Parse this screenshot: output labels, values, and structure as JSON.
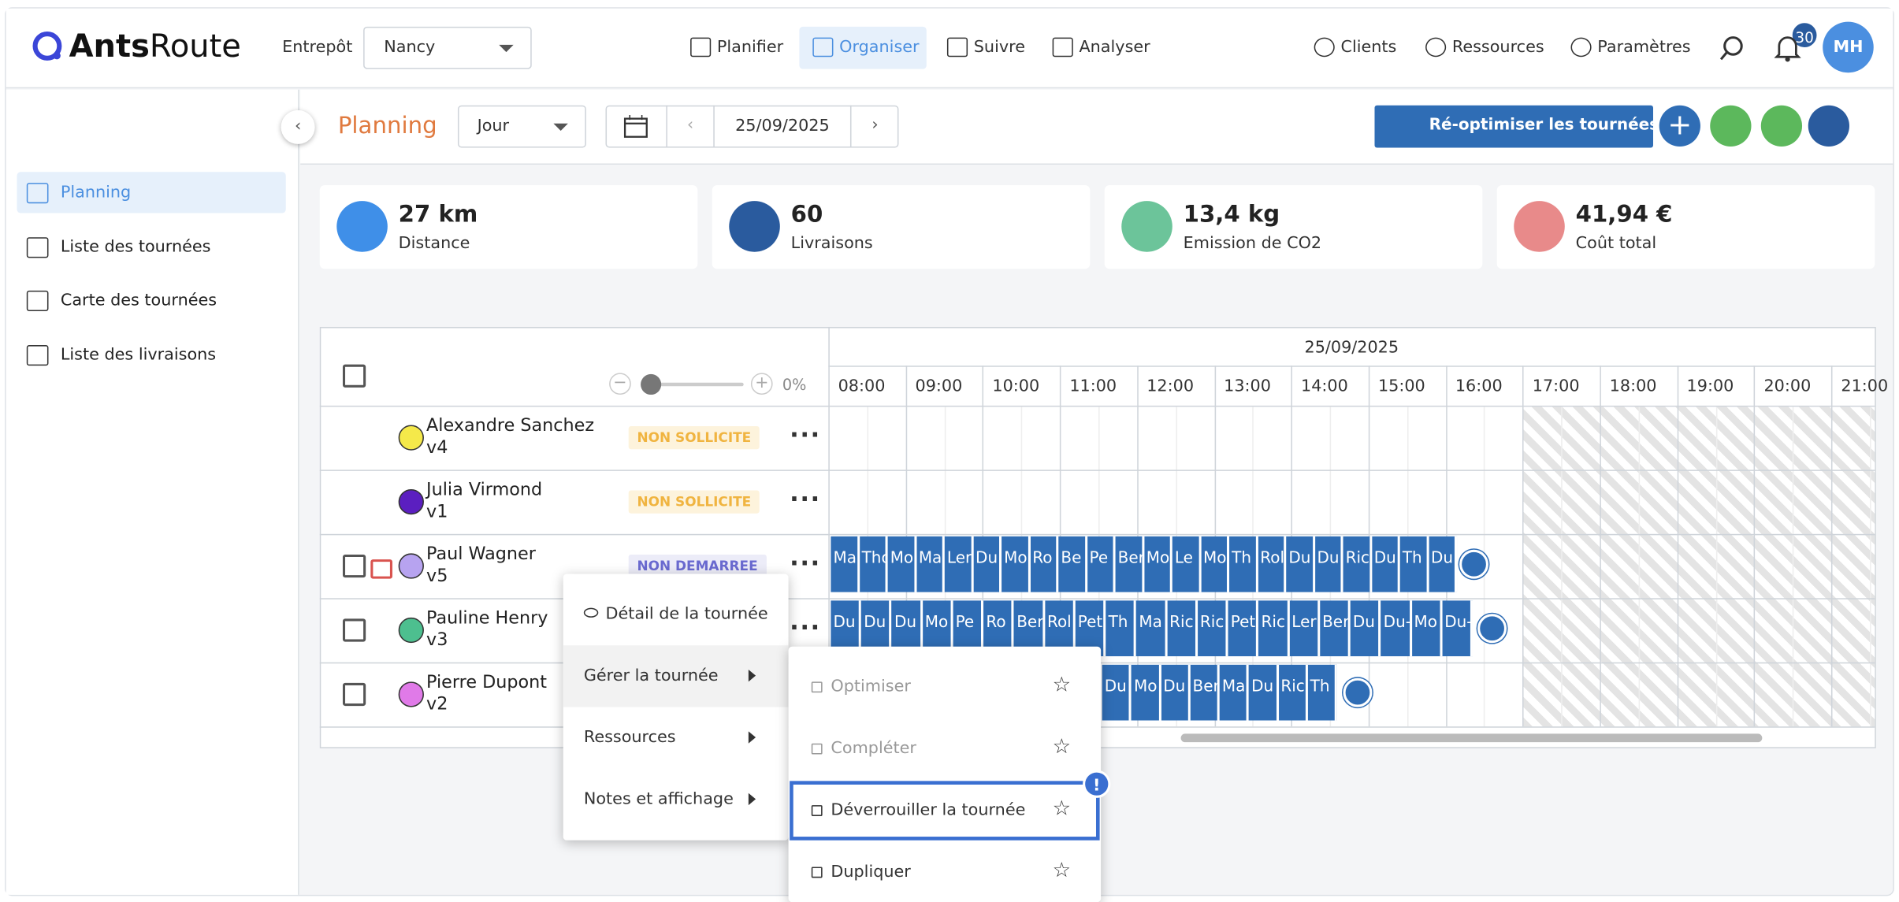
{
  "header": {
    "logo": [
      "Ants",
      "Route"
    ],
    "warehouse_label": "Entrepôt",
    "warehouse": "Nancy",
    "nav": [
      "Planifier",
      "Organiser",
      "Suivre",
      "Analyser"
    ],
    "nav_right": [
      "Clients",
      "Ressources",
      "Paramètres"
    ],
    "notifications": "30",
    "avatar": "MH"
  },
  "sidebar": [
    "Planning",
    "Liste des tournées",
    "Carte des tournées",
    "Liste des livraisons"
  ],
  "toolbar": {
    "title": "Planning",
    "view": "Jour",
    "date": "25/09/2025",
    "reoptimize": "Ré-optimiser les tournées"
  },
  "stats": [
    {
      "value": "27 km",
      "label": "Distance"
    },
    {
      "value": "60",
      "label": "Livraisons"
    },
    {
      "value": "13,4 kg",
      "label": "Emission de CO2"
    },
    {
      "value": "41,94 €",
      "label": "Coût total"
    }
  ],
  "gantt": {
    "zoom": "0%",
    "date": "25/09/2025",
    "hours": [
      "08:00",
      "09:00",
      "10:00",
      "11:00",
      "12:00",
      "13:00",
      "14:00",
      "15:00",
      "16:00",
      "17:00",
      "18:00",
      "19:00",
      "20:00",
      "21:00"
    ],
    "rows": [
      {
        "name": "Alexandre Sanchez",
        "vehicle": "v4",
        "status": "NON SOLLICITE",
        "blocks": []
      },
      {
        "name": "Julia Virmond",
        "vehicle": "v1",
        "status": "NON SOLLICITE",
        "blocks": []
      },
      {
        "name": "Paul Wagner",
        "vehicle": "v5",
        "status": "NON DEMARREE",
        "blocks": [
          "Ma",
          "Tho",
          "Mo",
          "Ma",
          "Ler",
          "Du",
          "Mo",
          "Ro",
          "Be",
          "Pe",
          "Ber",
          "Mo",
          "Le",
          "Mo",
          "Th",
          "Rol",
          "Du",
          "Du",
          "Ric",
          "Du",
          "Th",
          "Du"
        ]
      },
      {
        "name": "Pauline Henry",
        "vehicle": "v3",
        "status": "",
        "blocks": [
          "Du",
          "Du",
          "Du",
          "Mo",
          "Pe",
          "Ro",
          "Ber",
          "Rol",
          "Pet",
          "Th",
          "Ma",
          "Ric",
          "Ric",
          "Pet",
          "Ric",
          "Ler",
          "Ber",
          "Du",
          "Du-",
          "Mo",
          "Du-"
        ]
      },
      {
        "name": "Pierre Dupont",
        "vehicle": "v2",
        "status": "",
        "blocks": [
          "Du",
          "Mo",
          "Du",
          "Ber",
          "Ma",
          "Du",
          "Ric",
          "Th"
        ]
      }
    ]
  },
  "context_menu": {
    "items": [
      "Détail de la tournée",
      "Gérer la tournée",
      "Ressources",
      "Notes et affichage"
    ],
    "submenu": [
      "Optimiser",
      "Compléter",
      "Déverrouiller la tournée",
      "Dupliquer"
    ]
  }
}
